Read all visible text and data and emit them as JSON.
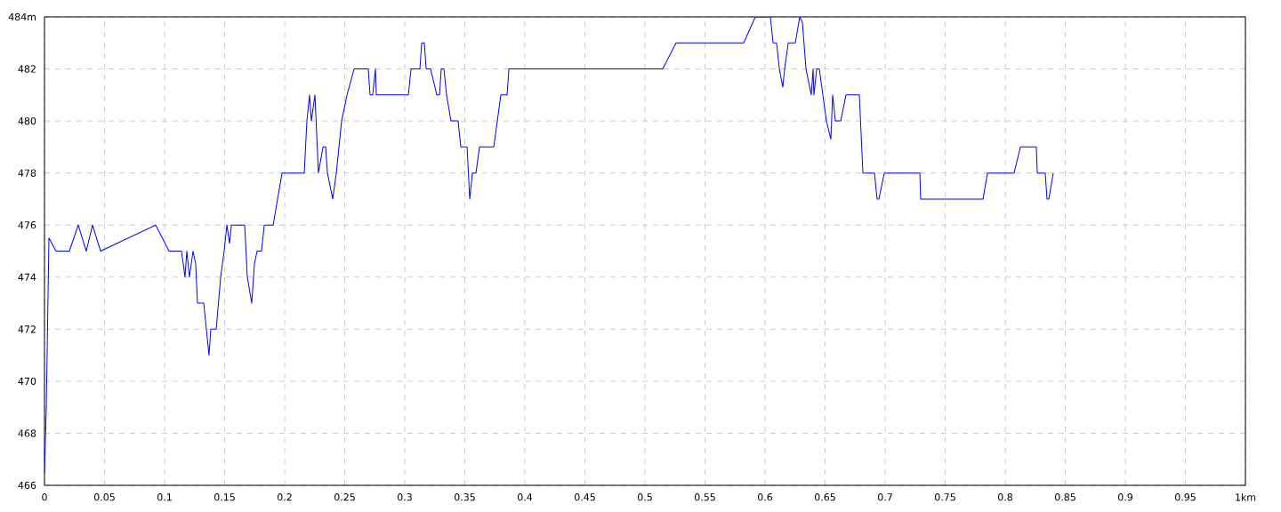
{
  "chart_data": {
    "type": "line",
    "color": "#0000ff",
    "grid": true,
    "marker": "none",
    "xlim": [
      0,
      1
    ],
    "ylim": [
      466,
      484
    ],
    "xticks": [
      0,
      0.05,
      0.1,
      0.15,
      0.2,
      0.25,
      0.3,
      0.35,
      0.4,
      0.45,
      0.5,
      0.55,
      0.6,
      0.65,
      0.7,
      0.75,
      0.8,
      0.85,
      0.9,
      0.95,
      {
        "value": 1,
        "label": "1km"
      }
    ],
    "yticks": [
      466,
      468,
      470,
      472,
      474,
      476,
      478,
      480,
      482,
      {
        "value": 484,
        "label": "484m"
      }
    ],
    "x": [
      0,
      0.0015,
      0.0037,
      0.0096,
      0.0207,
      0.0281,
      0.0348,
      0.04,
      0.0467,
      0.0926,
      0.1037,
      0.1141,
      0.117,
      0.1185,
      0.1207,
      0.1237,
      0.1259,
      0.1274,
      0.1326,
      0.1348,
      0.137,
      0.1385,
      0.143,
      0.1467,
      0.1496,
      0.1519,
      0.1541,
      0.1556,
      0.1667,
      0.1689,
      0.1726,
      0.1748,
      0.177,
      0.1807,
      0.183,
      0.1904,
      0.1941,
      0.1978,
      0.2163,
      0.2185,
      0.2207,
      0.2222,
      0.2252,
      0.2281,
      0.2319,
      0.2341,
      0.2356,
      0.24,
      0.243,
      0.2474,
      0.2519,
      0.2578,
      0.2696,
      0.2711,
      0.2733,
      0.2756,
      0.2763,
      0.303,
      0.3052,
      0.3126,
      0.3141,
      0.3163,
      0.3178,
      0.3215,
      0.3267,
      0.3289,
      0.3304,
      0.3326,
      0.3348,
      0.3385,
      0.3444,
      0.3467,
      0.3519,
      0.3541,
      0.3563,
      0.3593,
      0.3622,
      0.3741,
      0.38,
      0.3852,
      0.3867,
      0.5148,
      0.5259,
      0.5822,
      0.5919,
      0.6044,
      0.6067,
      0.6096,
      0.6119,
      0.6148,
      0.6163,
      0.6193,
      0.6252,
      0.6289,
      0.6311,
      0.6341,
      0.6385,
      0.64,
      0.6407,
      0.643,
      0.6452,
      0.6511,
      0.6548,
      0.6563,
      0.6585,
      0.663,
      0.6674,
      0.6785,
      0.6815,
      0.6911,
      0.6933,
      0.6948,
      0.6993,
      0.7289,
      0.7296,
      0.7815,
      0.7852,
      0.8074,
      0.8126,
      0.8259,
      0.8267,
      0.8333,
      0.8348,
      0.8363,
      0.84
    ],
    "values": [
      466.5,
      469,
      475.5,
      475,
      475,
      476,
      475,
      476,
      475,
      476,
      475,
      475,
      474,
      475,
      474,
      475,
      474.5,
      473,
      473,
      472,
      471,
      472,
      472,
      474,
      475,
      476,
      475.3,
      476,
      476,
      474,
      473,
      474.5,
      475,
      475,
      476,
      476,
      477,
      478,
      478,
      480,
      481,
      480,
      481,
      478,
      479,
      479,
      478,
      477,
      478,
      480,
      481,
      482,
      482,
      481,
      481,
      482,
      481,
      481,
      482,
      482,
      483,
      483,
      482,
      482,
      481,
      481,
      482,
      482,
      481,
      480,
      480,
      479,
      479,
      477,
      478,
      478,
      479,
      479,
      481,
      481,
      482,
      482,
      483,
      483,
      484,
      484,
      483,
      483,
      482,
      481.3,
      482,
      483,
      483,
      484,
      483.8,
      482,
      481,
      482,
      481,
      482,
      482,
      480,
      479.3,
      481,
      480,
      480,
      481,
      481,
      478,
      478,
      477,
      477,
      478,
      478,
      477,
      477,
      478,
      478,
      479,
      479,
      478,
      478,
      477,
      477,
      478
    ]
  }
}
